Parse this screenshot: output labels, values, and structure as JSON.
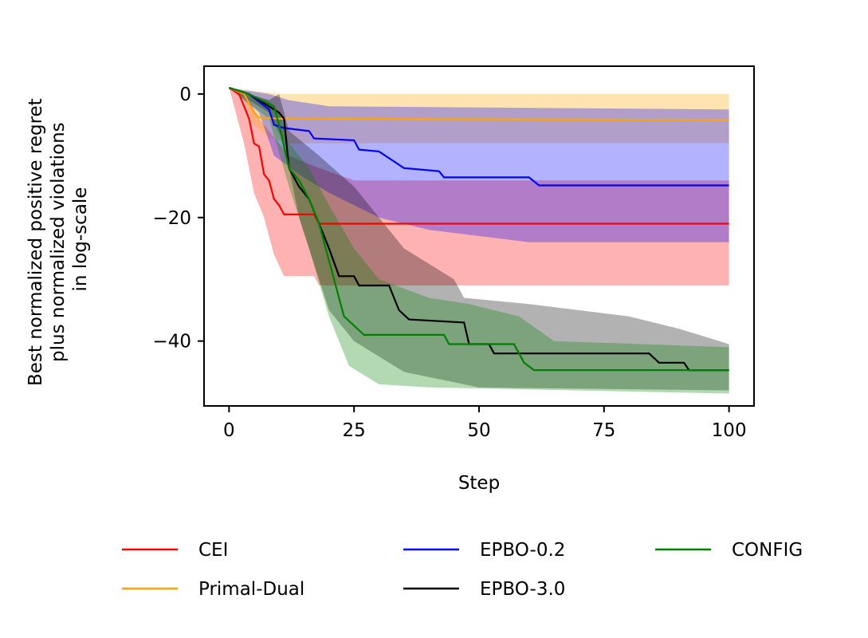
{
  "chart_data": {
    "type": "line",
    "xlabel": "Step",
    "ylabel_lines": [
      "Best normalized positive regret",
      "plus normalized violations",
      "in log-scale"
    ],
    "xlim": [
      -5,
      105
    ],
    "ylim": [
      -50.5,
      4.5
    ],
    "xticks": [
      0,
      25,
      50,
      75,
      100
    ],
    "yticks": [
      0,
      -20,
      -40
    ],
    "grid": false,
    "legend_position": "bottom",
    "series": [
      {
        "name": "CEI",
        "color": "#ff0000",
        "band_color": "#ff0000",
        "band_opacity": 0.3,
        "points": [
          [
            0,
            1
          ],
          [
            2,
            0
          ],
          [
            3,
            -2
          ],
          [
            4,
            -4
          ],
          [
            5,
            -8
          ],
          [
            6,
            -8.5
          ],
          [
            7,
            -13
          ],
          [
            8,
            -14
          ],
          [
            9,
            -17
          ],
          [
            10,
            -18
          ],
          [
            11,
            -19.5
          ],
          [
            17,
            -19.5
          ],
          [
            18,
            -21
          ],
          [
            100,
            -21
          ]
        ],
        "upper": [
          [
            0,
            1
          ],
          [
            4,
            -1
          ],
          [
            6,
            -4
          ],
          [
            8,
            -6
          ],
          [
            10,
            -8
          ],
          [
            12,
            -10
          ],
          [
            18,
            -12
          ],
          [
            25,
            -14
          ],
          [
            100,
            -14
          ]
        ],
        "lower": [
          [
            0,
            1
          ],
          [
            3,
            -8
          ],
          [
            5,
            -16
          ],
          [
            7,
            -20
          ],
          [
            9,
            -26
          ],
          [
            11,
            -29.5
          ],
          [
            17,
            -29.5
          ],
          [
            18,
            -31
          ],
          [
            100,
            -31
          ]
        ]
      },
      {
        "name": "Primal-Dual",
        "color": "#ffa500",
        "band_color": "#ffa500",
        "band_opacity": 0.3,
        "points": [
          [
            0,
            1
          ],
          [
            3,
            0
          ],
          [
            5,
            -3
          ],
          [
            6,
            -3.8
          ],
          [
            10,
            -4
          ],
          [
            100,
            -4.2
          ]
        ],
        "upper": [
          [
            0,
            1
          ],
          [
            5,
            0.5
          ],
          [
            10,
            0
          ],
          [
            100,
            0
          ]
        ],
        "lower": [
          [
            0,
            1
          ],
          [
            3,
            -1
          ],
          [
            5,
            -5
          ],
          [
            8,
            -7
          ],
          [
            12,
            -8
          ],
          [
            100,
            -8
          ]
        ]
      },
      {
        "name": "EPBO-0.2",
        "color": "#0000ff",
        "band_color": "#0000ff",
        "band_opacity": 0.3,
        "points": [
          [
            0,
            1
          ],
          [
            4,
            0
          ],
          [
            8,
            -2.5
          ],
          [
            9,
            -5
          ],
          [
            11,
            -5.5
          ],
          [
            16,
            -6
          ],
          [
            17,
            -7.2
          ],
          [
            25,
            -7.5
          ],
          [
            26,
            -9
          ],
          [
            30,
            -9.3
          ],
          [
            35,
            -12
          ],
          [
            42,
            -12.5
          ],
          [
            43,
            -13.5
          ],
          [
            60,
            -13.5
          ],
          [
            62,
            -14.8
          ],
          [
            100,
            -14.8
          ]
        ],
        "upper": [
          [
            0,
            1
          ],
          [
            8,
            0
          ],
          [
            12,
            -1
          ],
          [
            20,
            -2
          ],
          [
            100,
            -2.5
          ]
        ],
        "lower": [
          [
            0,
            1
          ],
          [
            6,
            -3
          ],
          [
            9,
            -10
          ],
          [
            14,
            -13
          ],
          [
            20,
            -16
          ],
          [
            30,
            -20
          ],
          [
            40,
            -22
          ],
          [
            60,
            -24
          ],
          [
            100,
            -24
          ]
        ]
      },
      {
        "name": "EPBO-3.0",
        "color": "#000000",
        "band_color": "#000000",
        "band_opacity": 0.3,
        "points": [
          [
            0,
            1
          ],
          [
            4,
            0
          ],
          [
            8,
            -2
          ],
          [
            10,
            -3
          ],
          [
            11,
            -4
          ],
          [
            12,
            -12
          ],
          [
            14,
            -15
          ],
          [
            16,
            -17
          ],
          [
            18,
            -21
          ],
          [
            20,
            -25
          ],
          [
            22,
            -29.5
          ],
          [
            25,
            -29.5
          ],
          [
            26,
            -31
          ],
          [
            32,
            -31
          ],
          [
            34,
            -35
          ],
          [
            36,
            -36.5
          ],
          [
            47,
            -37
          ],
          [
            48,
            -40.5
          ],
          [
            52,
            -40.5
          ],
          [
            53,
            -42
          ],
          [
            84,
            -42
          ],
          [
            86,
            -43.5
          ],
          [
            91,
            -43.5
          ],
          [
            92,
            -44.7
          ],
          [
            100,
            -44.7
          ]
        ],
        "upper": [
          [
            0,
            1
          ],
          [
            8,
            -1
          ],
          [
            10,
            0
          ],
          [
            12,
            -6
          ],
          [
            18,
            -10
          ],
          [
            25,
            -15
          ],
          [
            35,
            -25
          ],
          [
            45,
            -30
          ],
          [
            47,
            -33
          ],
          [
            60,
            -34
          ],
          [
            80,
            -36
          ],
          [
            90,
            -38
          ],
          [
            100,
            -40.5
          ]
        ],
        "lower": [
          [
            0,
            1
          ],
          [
            8,
            -3
          ],
          [
            11,
            -8
          ],
          [
            14,
            -20
          ],
          [
            20,
            -35
          ],
          [
            25,
            -40
          ],
          [
            35,
            -45
          ],
          [
            50,
            -47.5
          ],
          [
            100,
            -48
          ]
        ]
      },
      {
        "name": "CONFIG",
        "color": "#008000",
        "band_color": "#008000",
        "band_opacity": 0.3,
        "points": [
          [
            0,
            1
          ],
          [
            4,
            0
          ],
          [
            9,
            -2
          ],
          [
            10,
            -5
          ],
          [
            12,
            -12
          ],
          [
            14,
            -14
          ],
          [
            16,
            -17
          ],
          [
            18,
            -21
          ],
          [
            20,
            -27
          ],
          [
            23,
            -36
          ],
          [
            27,
            -39
          ],
          [
            43,
            -39
          ],
          [
            44,
            -40.5
          ],
          [
            57,
            -40.5
          ],
          [
            59,
            -43.5
          ],
          [
            61,
            -44.7
          ],
          [
            100,
            -44.7
          ]
        ],
        "upper": [
          [
            0,
            1
          ],
          [
            8,
            -1
          ],
          [
            10,
            -3
          ],
          [
            12,
            -8
          ],
          [
            16,
            -12
          ],
          [
            20,
            -18
          ],
          [
            25,
            -25
          ],
          [
            30,
            -30
          ],
          [
            40,
            -33
          ],
          [
            48,
            -34
          ],
          [
            58,
            -36
          ],
          [
            65,
            -40
          ],
          [
            100,
            -41
          ]
        ],
        "lower": [
          [
            0,
            1
          ],
          [
            8,
            -4
          ],
          [
            12,
            -15
          ],
          [
            16,
            -25
          ],
          [
            20,
            -36
          ],
          [
            24,
            -44
          ],
          [
            30,
            -47
          ],
          [
            40,
            -47.5
          ],
          [
            100,
            -48.5
          ]
        ]
      }
    ]
  }
}
